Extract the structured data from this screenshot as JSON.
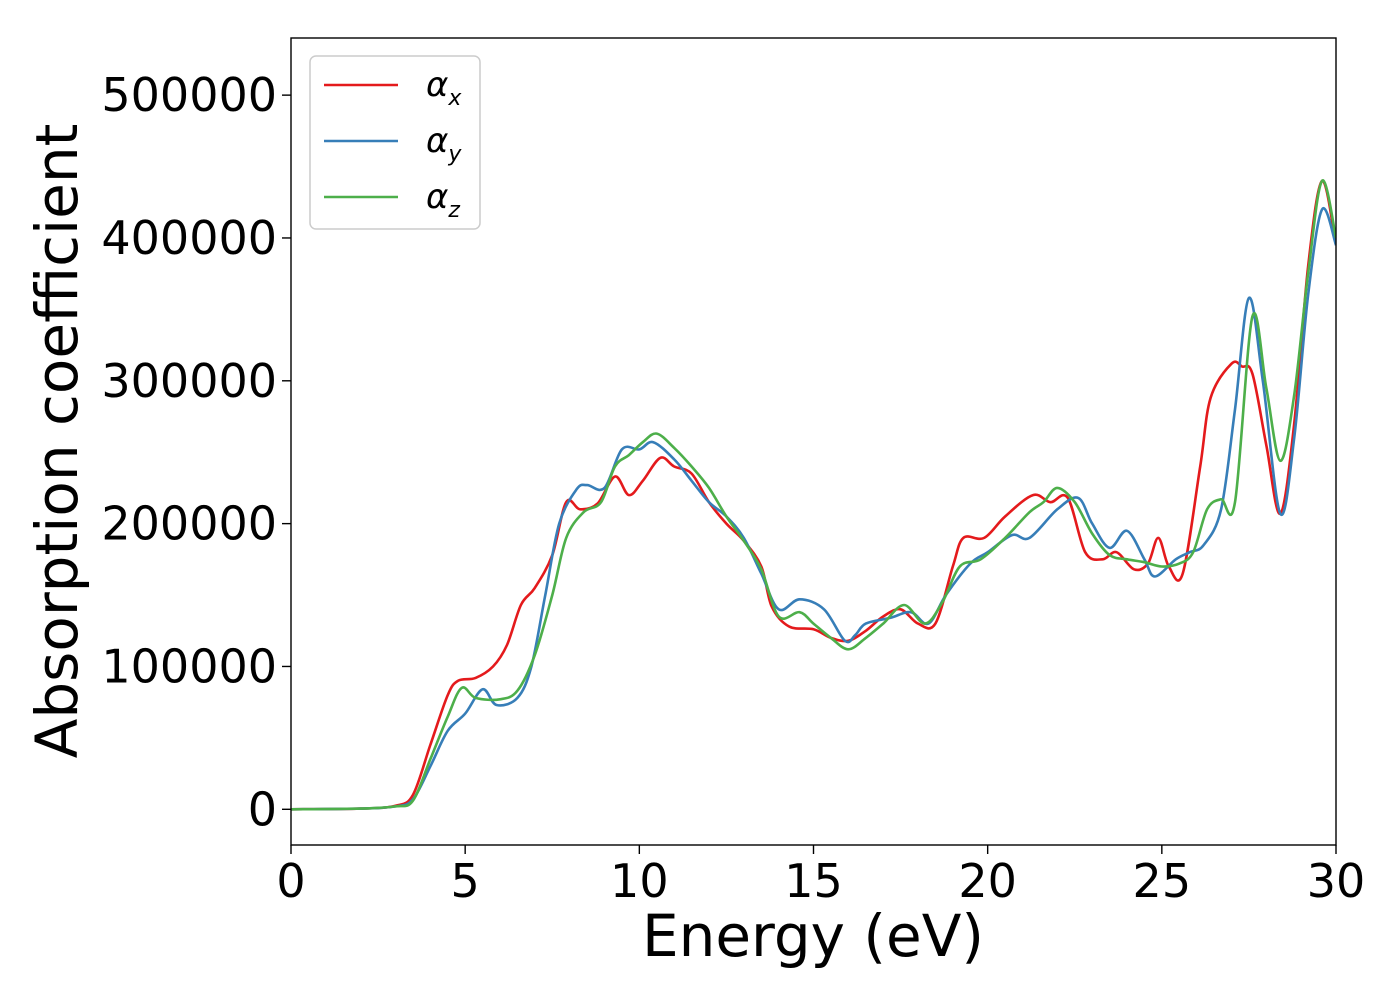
{
  "chart_data": {
    "type": "line",
    "title": "",
    "xlabel": "Energy (eV)",
    "ylabel": "Absorption coefficient",
    "xlim": [
      0,
      30
    ],
    "ylim": [
      -25000,
      540000
    ],
    "xticks": [
      0,
      5,
      10,
      15,
      20,
      25,
      30
    ],
    "yticks": [
      0,
      100000,
      200000,
      300000,
      400000,
      500000
    ],
    "grid": false,
    "legend_position": "top-left",
    "series": [
      {
        "name": "α_x",
        "label_main": "α",
        "label_sub": "x",
        "color": "#e41a1c",
        "points": [
          [
            0,
            0
          ],
          [
            2,
            500
          ],
          [
            3,
            2500
          ],
          [
            3.5,
            10000
          ],
          [
            4,
            45000
          ],
          [
            4.5,
            80000
          ],
          [
            4.8,
            90000
          ],
          [
            5.3,
            92000
          ],
          [
            5.8,
            100000
          ],
          [
            6.2,
            115000
          ],
          [
            6.6,
            143000
          ],
          [
            7,
            155000
          ],
          [
            7.5,
            178000
          ],
          [
            7.9,
            215000
          ],
          [
            8.3,
            210000
          ],
          [
            8.8,
            214000
          ],
          [
            9.3,
            233000
          ],
          [
            9.7,
            220000
          ],
          [
            10.1,
            230000
          ],
          [
            10.6,
            246000
          ],
          [
            11,
            240000
          ],
          [
            11.5,
            235000
          ],
          [
            12,
            215000
          ],
          [
            12.5,
            200000
          ],
          [
            13,
            188000
          ],
          [
            13.5,
            170000
          ],
          [
            13.8,
            142000
          ],
          [
            14.3,
            128000
          ],
          [
            15,
            126000
          ],
          [
            15.5,
            120000
          ],
          [
            16,
            118000
          ],
          [
            16.5,
            125000
          ],
          [
            17,
            135000
          ],
          [
            17.5,
            140000
          ],
          [
            18,
            130000
          ],
          [
            18.5,
            130000
          ],
          [
            19,
            170000
          ],
          [
            19.3,
            190000
          ],
          [
            19.9,
            190000
          ],
          [
            20.5,
            205000
          ],
          [
            21.3,
            220000
          ],
          [
            21.8,
            215000
          ],
          [
            22.3,
            218000
          ],
          [
            22.8,
            180000
          ],
          [
            23.3,
            175000
          ],
          [
            23.7,
            180000
          ],
          [
            24.2,
            168000
          ],
          [
            24.6,
            172000
          ],
          [
            24.9,
            190000
          ],
          [
            25.2,
            170000
          ],
          [
            25.6,
            165000
          ],
          [
            26.1,
            240000
          ],
          [
            26.4,
            288000
          ],
          [
            27,
            312000
          ],
          [
            27.3,
            310000
          ],
          [
            27.6,
            305000
          ],
          [
            28,
            255000
          ],
          [
            28.4,
            207000
          ],
          [
            28.8,
            270000
          ],
          [
            29.2,
            380000
          ],
          [
            29.6,
            440000
          ],
          [
            30,
            395000
          ]
        ]
      },
      {
        "name": "α_y",
        "label_main": "α",
        "label_sub": "y",
        "color": "#377eb8",
        "points": [
          [
            0,
            0
          ],
          [
            2,
            500
          ],
          [
            3,
            2000
          ],
          [
            3.5,
            7000
          ],
          [
            4,
            30000
          ],
          [
            4.5,
            55000
          ],
          [
            5,
            67000
          ],
          [
            5.5,
            84000
          ],
          [
            5.9,
            73000
          ],
          [
            6.5,
            78000
          ],
          [
            6.9,
            100000
          ],
          [
            7.3,
            150000
          ],
          [
            7.7,
            200000
          ],
          [
            8.2,
            224000
          ],
          [
            8.5,
            227000
          ],
          [
            9,
            225000
          ],
          [
            9.5,
            252000
          ],
          [
            10,
            252000
          ],
          [
            10.4,
            257000
          ],
          [
            11,
            245000
          ],
          [
            11.5,
            230000
          ],
          [
            12,
            215000
          ],
          [
            12.5,
            205000
          ],
          [
            13,
            190000
          ],
          [
            13.5,
            165000
          ],
          [
            14,
            140000
          ],
          [
            14.6,
            147000
          ],
          [
            15.3,
            140000
          ],
          [
            15.9,
            118000
          ],
          [
            16.2,
            122000
          ],
          [
            16.5,
            130000
          ],
          [
            17.2,
            134000
          ],
          [
            17.8,
            138000
          ],
          [
            18.3,
            130000
          ],
          [
            18.8,
            150000
          ],
          [
            19.5,
            172000
          ],
          [
            20,
            180000
          ],
          [
            20.7,
            192000
          ],
          [
            21.2,
            190000
          ],
          [
            22,
            210000
          ],
          [
            22.6,
            218000
          ],
          [
            23,
            200000
          ],
          [
            23.5,
            183000
          ],
          [
            24,
            195000
          ],
          [
            24.5,
            175000
          ],
          [
            24.8,
            163000
          ],
          [
            25.4,
            175000
          ],
          [
            25.8,
            180000
          ],
          [
            26.2,
            185000
          ],
          [
            26.7,
            210000
          ],
          [
            27.1,
            280000
          ],
          [
            27.5,
            358000
          ],
          [
            27.9,
            300000
          ],
          [
            28.4,
            207000
          ],
          [
            28.8,
            260000
          ],
          [
            29.2,
            360000
          ],
          [
            29.6,
            420000
          ],
          [
            30,
            395000
          ]
        ]
      },
      {
        "name": "α_z",
        "label_main": "α",
        "label_sub": "z",
        "color": "#4daf4a",
        "points": [
          [
            0,
            0
          ],
          [
            2,
            500
          ],
          [
            3,
            2000
          ],
          [
            3.5,
            6000
          ],
          [
            4,
            35000
          ],
          [
            4.5,
            65000
          ],
          [
            4.9,
            85000
          ],
          [
            5.3,
            78000
          ],
          [
            6,
            77000
          ],
          [
            6.5,
            83000
          ],
          [
            7,
            108000
          ],
          [
            7.5,
            150000
          ],
          [
            7.9,
            190000
          ],
          [
            8.4,
            208000
          ],
          [
            8.9,
            215000
          ],
          [
            9.3,
            240000
          ],
          [
            9.7,
            248000
          ],
          [
            10.1,
            257000
          ],
          [
            10.5,
            263000
          ],
          [
            11,
            253000
          ],
          [
            11.5,
            240000
          ],
          [
            12,
            225000
          ],
          [
            12.5,
            205000
          ],
          [
            13,
            188000
          ],
          [
            13.5,
            168000
          ],
          [
            14,
            135000
          ],
          [
            14.6,
            138000
          ],
          [
            15,
            130000
          ],
          [
            15.5,
            120000
          ],
          [
            16,
            112000
          ],
          [
            16.5,
            120000
          ],
          [
            17,
            130000
          ],
          [
            17.6,
            143000
          ],
          [
            18.2,
            130000
          ],
          [
            18.7,
            145000
          ],
          [
            19.2,
            170000
          ],
          [
            19.8,
            175000
          ],
          [
            20.5,
            190000
          ],
          [
            21.2,
            208000
          ],
          [
            21.6,
            215000
          ],
          [
            22,
            225000
          ],
          [
            22.5,
            215000
          ],
          [
            23,
            193000
          ],
          [
            23.5,
            178000
          ],
          [
            24,
            175000
          ],
          [
            24.5,
            173000
          ],
          [
            25,
            170000
          ],
          [
            25.5,
            172000
          ],
          [
            25.9,
            180000
          ],
          [
            26.3,
            210000
          ],
          [
            26.7,
            217000
          ],
          [
            27.1,
            215000
          ],
          [
            27.6,
            345000
          ],
          [
            28,
            295000
          ],
          [
            28.4,
            244000
          ],
          [
            28.8,
            290000
          ],
          [
            29.2,
            375000
          ],
          [
            29.6,
            440000
          ],
          [
            30,
            400000
          ]
        ]
      }
    ]
  }
}
